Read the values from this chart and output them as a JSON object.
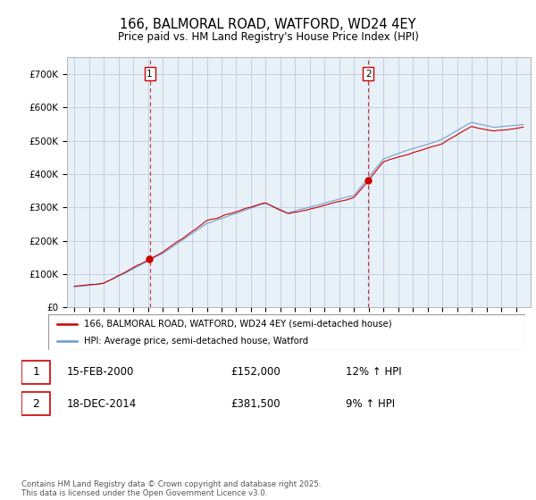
{
  "title": "166, BALMORAL ROAD, WATFORD, WD24 4EY",
  "subtitle": "Price paid vs. HM Land Registry's House Price Index (HPI)",
  "legend_line1": "166, BALMORAL ROAD, WATFORD, WD24 4EY (semi-detached house)",
  "legend_line2": "HPI: Average price, semi-detached house, Watford",
  "annotation1_date": "15-FEB-2000",
  "annotation1_price": "£152,000",
  "annotation1_hpi": "12% ↑ HPI",
  "annotation1_year": 2000.12,
  "annotation1_value": 152000,
  "annotation2_date": "18-DEC-2014",
  "annotation2_price": "£381,500",
  "annotation2_hpi": "9% ↑ HPI",
  "annotation2_year": 2014.96,
  "annotation2_value": 381500,
  "footer": "Contains HM Land Registry data © Crown copyright and database right 2025.\nThis data is licensed under the Open Government Licence v3.0.",
  "red_color": "#cc0000",
  "blue_color": "#6699cc",
  "chart_bg_color": "#e8f0f8",
  "background_color": "#ffffff",
  "grid_color": "#bbccdd",
  "ylim_min": 0,
  "ylim_max": 750000,
  "xlim_min": 1994.5,
  "xlim_max": 2026.0
}
